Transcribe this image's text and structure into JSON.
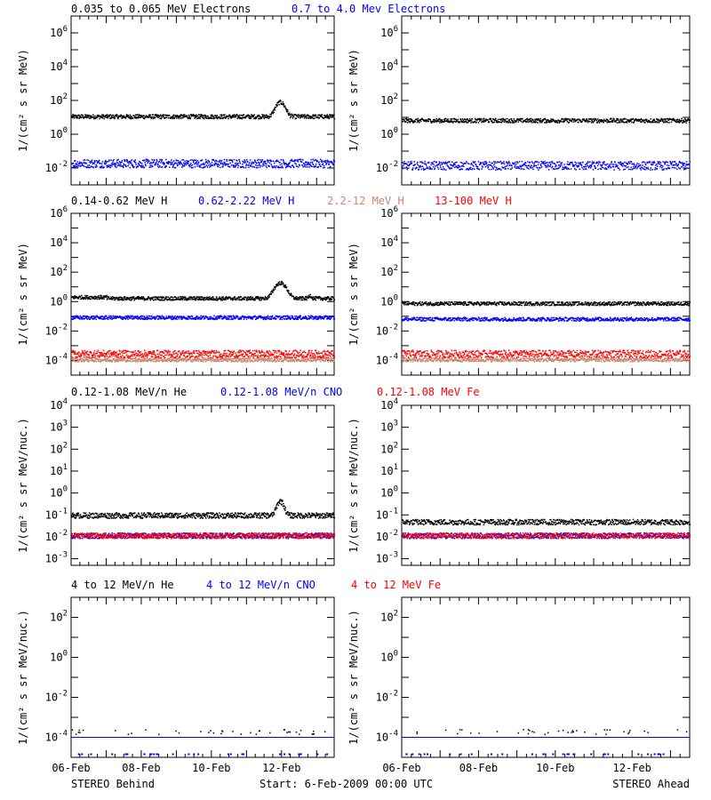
{
  "footer": {
    "left": "STEREO Behind",
    "center": "Start:  6-Feb-2009 00:00 UTC",
    "right": "STEREO Ahead"
  },
  "chart_data": [
    {
      "type": "scatter",
      "title_segments": [
        {
          "text": "0.035 to 0.065 MeV Electrons",
          "color": "#000000"
        },
        {
          "text": "0.7 to 4.0 Mev Electrons",
          "color": "#0000ff"
        }
      ],
      "ylabel": "1/(cm² s sr MeV)",
      "yscale": "log",
      "ylim": [
        0.001,
        10000000
      ],
      "ytick_labels": [
        "10^-2",
        "10^0",
        "10^2",
        "10^4",
        "10^6"
      ],
      "xticks": [
        "06-Feb",
        "08-Feb",
        "10-Feb",
        "12-Feb"
      ],
      "xlim_days": [
        0,
        7.5
      ],
      "panels": [
        {
          "spacecraft": "STEREO Behind",
          "series": [
            {
              "color": "#000000",
              "base": 12,
              "profile": "e_behind"
            },
            {
              "color": "#0000ff",
              "base": 0.02,
              "spread": 0.5
            }
          ]
        },
        {
          "spacecraft": "STEREO Ahead",
          "series": [
            {
              "color": "#000000",
              "base": 7
            },
            {
              "color": "#0000ff",
              "base": 0.015,
              "spread": 0.5
            }
          ]
        }
      ]
    },
    {
      "type": "scatter",
      "title_segments": [
        {
          "text": "0.14-0.62 MeV H",
          "color": "#000000"
        },
        {
          "text": "0.62-2.22 MeV H",
          "color": "#0000ff"
        },
        {
          "text": "2.2-12 MeV H",
          "color": "#c8876e"
        },
        {
          "text": "13-100 MeV H",
          "color": "#ff0000"
        }
      ],
      "ylabel": "1/(cm² s sr MeV)",
      "yscale": "log",
      "ylim": [
        1e-05,
        1000000
      ],
      "ytick_labels": [
        "10^-4",
        "10^-2",
        "10^0",
        "10^2",
        "10^4",
        "10^6"
      ],
      "xticks": [
        "06-Feb",
        "08-Feb",
        "10-Feb",
        "12-Feb"
      ],
      "xlim_days": [
        0,
        7.5
      ],
      "panels": [
        {
          "spacecraft": "STEREO Behind",
          "series": [
            {
              "color": "#000000",
              "base": 1.8,
              "profile": "h_behind"
            },
            {
              "color": "#0000ff",
              "base": 0.09
            },
            {
              "color": "#c8876e",
              "base": 0.00012
            },
            {
              "color": "#ff0000",
              "base": 0.0003,
              "spread": 0.5
            }
          ]
        },
        {
          "spacecraft": "STEREO Ahead",
          "series": [
            {
              "color": "#000000",
              "base": 0.8
            },
            {
              "color": "#0000ff",
              "base": 0.07
            },
            {
              "color": "#c8876e",
              "base": 0.00012
            },
            {
              "color": "#ff0000",
              "base": 0.0003,
              "spread": 0.5
            }
          ]
        }
      ]
    },
    {
      "type": "scatter",
      "title_segments": [
        {
          "text": "0.12-1.08 MeV/n He",
          "color": "#000000"
        },
        {
          "text": "0.12-1.08 MeV/n CNO",
          "color": "#0000ff"
        },
        {
          "text": "0.12-1.08 MeV Fe",
          "color": "#ff0000"
        }
      ],
      "ylabel": "1/(cm² s sr MeV/nuc.)",
      "yscale": "log",
      "ylim": [
        0.0005,
        10000
      ],
      "ytick_labels": [
        "10^-3",
        "10^-2",
        "10^-1",
        "10^0",
        "10^1",
        "10^2",
        "10^3",
        "10^4"
      ],
      "xticks": [
        "06-Feb",
        "08-Feb",
        "10-Feb",
        "12-Feb"
      ],
      "xlim_days": [
        0,
        7.5
      ],
      "panels": [
        {
          "spacecraft": "STEREO Behind",
          "series": [
            {
              "color": "#000000",
              "base": 0.1,
              "profile": "he_behind"
            },
            {
              "color": "#0000ff",
              "base": 0.012
            },
            {
              "color": "#ff0000",
              "base": 0.012
            }
          ]
        },
        {
          "spacecraft": "STEREO Ahead",
          "series": [
            {
              "color": "#000000",
              "base": 0.05
            },
            {
              "color": "#0000ff",
              "base": 0.012
            },
            {
              "color": "#ff0000",
              "base": 0.012
            }
          ]
        }
      ]
    },
    {
      "type": "scatter",
      "title_segments": [
        {
          "text": "4 to 12 MeV/n He",
          "color": "#000000"
        },
        {
          "text": "4 to 12 MeV/n CNO",
          "color": "#0000ff"
        },
        {
          "text": "4 to 12 MeV Fe",
          "color": "#ff0000"
        }
      ],
      "ylabel": "1/(cm² s sr MeV/nuc.)",
      "yscale": "log",
      "ylim": [
        1e-05,
        1000
      ],
      "ytick_labels": [
        "10^-4",
        "10^-2",
        "10^0",
        "10^2"
      ],
      "xticks": [
        "06-Feb",
        "08-Feb",
        "10-Feb",
        "12-Feb"
      ],
      "xlim_days": [
        0,
        7.5
      ],
      "panels": [
        {
          "spacecraft": "STEREO Behind",
          "series": [
            {
              "color": "#000000",
              "base": 0.0002,
              "sparse": true
            },
            {
              "color": "#0000ff",
              "base": 0.0001,
              "line": true
            }
          ]
        },
        {
          "spacecraft": "STEREO Ahead",
          "series": [
            {
              "color": "#000000",
              "base": 0.0002,
              "sparse": true
            },
            {
              "color": "#0000ff",
              "base": 0.0001,
              "line": true
            }
          ]
        }
      ]
    }
  ]
}
